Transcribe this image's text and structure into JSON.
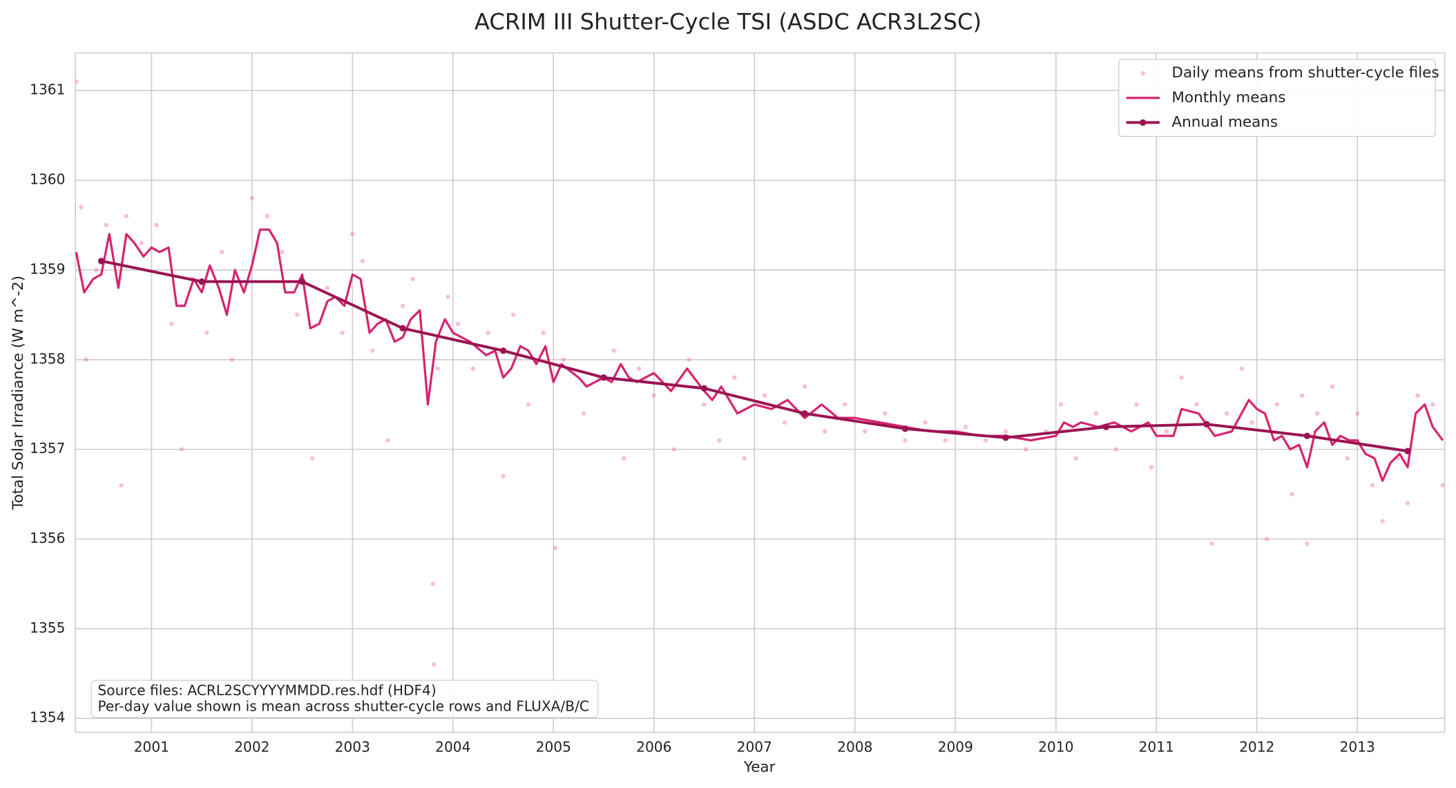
{
  "chart_data": {
    "type": "line",
    "title": "ACRIM III Shutter-Cycle TSI (ASDC ACR3L2SC)",
    "x_label": "Year",
    "y_label": "Total Solar Irradiance (W m^-2)",
    "xlim": [
      2000.243,
      2013.868
    ],
    "ylim": [
      1353.845,
      1361.42
    ],
    "xticks": [
      2001,
      2002,
      2003,
      2004,
      2005,
      2006,
      2007,
      2008,
      2009,
      2010,
      2011,
      2012,
      2013
    ],
    "yticks": [
      1354,
      1355,
      1356,
      1357,
      1358,
      1359,
      1360,
      1361
    ],
    "grid": true,
    "legend": "upper right",
    "annotation": [
      "Source files: ACRL2SCYYYYMMDD.res.hdf (HDF4)",
      "Per-day value shown is mean across shutter-cycle rows and FLUXA/B/C"
    ],
    "series": [
      {
        "name": "Daily means from shutter-cycle files",
        "type": "scatter",
        "color": "#f06eb0",
        "x": [
          2000.25,
          2000.3,
          2000.35,
          2000.45,
          2000.55,
          2000.7,
          2000.75,
          2000.9,
          2001.05,
          2001.2,
          2001.3,
          2001.4,
          2001.55,
          2001.7,
          2001.8,
          2002.0,
          2002.15,
          2002.3,
          2002.45,
          2002.6,
          2002.75,
          2002.9,
          2003.0,
          2003.1,
          2003.2,
          2003.35,
          2003.5,
          2003.6,
          2003.8,
          2003.81,
          2003.85,
          2003.95,
          2004.05,
          2004.2,
          2004.35,
          2004.5,
          2004.6,
          2004.75,
          2004.9,
          2005.02,
          2005.1,
          2005.3,
          2005.45,
          2005.6,
          2005.7,
          2005.85,
          2006.0,
          2006.2,
          2006.35,
          2006.5,
          2006.65,
          2006.8,
          2006.9,
          2007.1,
          2007.3,
          2007.5,
          2007.7,
          2007.9,
          2008.1,
          2008.3,
          2008.5,
          2008.7,
          2008.9,
          2009.1,
          2009.3,
          2009.5,
          2009.7,
          2009.9,
          2010.05,
          2010.2,
          2010.4,
          2010.6,
          2010.8,
          2010.95,
          2011.1,
          2011.25,
          2011.4,
          2011.55,
          2011.7,
          2011.85,
          2011.95,
          2012.1,
          2012.2,
          2012.35,
          2012.45,
          2012.5,
          2012.6,
          2012.75,
          2012.9,
          2013.0,
          2013.15,
          2013.25,
          2013.4,
          2013.5,
          2013.6,
          2013.75,
          2013.85
        ],
        "values": [
          1361.1,
          1359.7,
          1358.0,
          1359.0,
          1359.5,
          1356.6,
          1359.6,
          1359.3,
          1359.5,
          1358.4,
          1357.0,
          1358.9,
          1358.3,
          1359.2,
          1358.0,
          1359.8,
          1359.6,
          1359.2,
          1358.5,
          1356.9,
          1358.8,
          1358.3,
          1359.4,
          1359.1,
          1358.1,
          1357.1,
          1358.6,
          1358.9,
          1355.5,
          1354.6,
          1357.9,
          1358.7,
          1358.4,
          1357.9,
          1358.3,
          1356.7,
          1358.5,
          1357.5,
          1358.3,
          1355.9,
          1358.0,
          1357.4,
          1357.8,
          1358.1,
          1356.9,
          1357.9,
          1357.6,
          1357.0,
          1358.0,
          1357.5,
          1357.1,
          1357.8,
          1356.9,
          1357.6,
          1357.3,
          1357.7,
          1357.2,
          1357.5,
          1357.2,
          1357.4,
          1357.1,
          1357.3,
          1357.1,
          1357.25,
          1357.1,
          1357.2,
          1357.0,
          1357.2,
          1357.5,
          1356.9,
          1357.4,
          1357.0,
          1357.5,
          1356.8,
          1357.2,
          1357.8,
          1357.5,
          1355.95,
          1357.4,
          1357.9,
          1357.3,
          1356.0,
          1357.5,
          1356.5,
          1357.6,
          1355.95,
          1357.4,
          1357.7,
          1356.9,
          1357.4,
          1356.6,
          1356.2,
          1356.9,
          1356.4,
          1357.6,
          1357.5,
          1356.6
        ]
      },
      {
        "name": "Monthly means",
        "type": "line",
        "color": "#d6246e",
        "x": [
          2000.25,
          2000.33,
          2000.42,
          2000.5,
          2000.58,
          2000.67,
          2000.75,
          2000.83,
          2000.92,
          2001.0,
          2001.08,
          2001.17,
          2001.25,
          2001.33,
          2001.42,
          2001.5,
          2001.58,
          2001.67,
          2001.75,
          2001.83,
          2001.92,
          2002.0,
          2002.08,
          2002.17,
          2002.25,
          2002.33,
          2002.42,
          2002.5,
          2002.58,
          2002.67,
          2002.75,
          2002.83,
          2002.92,
          2003.0,
          2003.08,
          2003.17,
          2003.25,
          2003.33,
          2003.42,
          2003.5,
          2003.58,
          2003.67,
          2003.75,
          2003.83,
          2003.92,
          2004.0,
          2004.17,
          2004.33,
          2004.42,
          2004.5,
          2004.58,
          2004.67,
          2004.75,
          2004.83,
          2004.92,
          2005.0,
          2005.08,
          2005.25,
          2005.33,
          2005.5,
          2005.58,
          2005.67,
          2005.75,
          2005.83,
          2006.0,
          2006.17,
          2006.33,
          2006.5,
          2006.58,
          2006.67,
          2006.83,
          2007.0,
          2007.17,
          2007.33,
          2007.5,
          2007.67,
          2007.83,
          2008.0,
          2008.25,
          2008.5,
          2008.75,
          2009.0,
          2009.25,
          2009.5,
          2009.75,
          2010.0,
          2010.08,
          2010.17,
          2010.25,
          2010.42,
          2010.58,
          2010.75,
          2010.92,
          2011.0,
          2011.17,
          2011.25,
          2011.42,
          2011.58,
          2011.75,
          2011.92,
          2012.0,
          2012.08,
          2012.17,
          2012.25,
          2012.33,
          2012.42,
          2012.5,
          2012.58,
          2012.67,
          2012.75,
          2012.83,
          2012.92,
          2013.0,
          2013.08,
          2013.17,
          2013.25,
          2013.33,
          2013.42,
          2013.5,
          2013.58,
          2013.67,
          2013.75,
          2013.85
        ],
        "values": [
          1359.2,
          1358.75,
          1358.9,
          1358.95,
          1359.4,
          1358.8,
          1359.4,
          1359.3,
          1359.15,
          1359.25,
          1359.2,
          1359.25,
          1358.6,
          1358.6,
          1358.9,
          1358.75,
          1359.05,
          1358.8,
          1358.5,
          1359.0,
          1358.75,
          1359.05,
          1359.45,
          1359.45,
          1359.3,
          1358.75,
          1358.75,
          1358.95,
          1358.35,
          1358.4,
          1358.65,
          1358.7,
          1358.6,
          1358.95,
          1358.9,
          1358.3,
          1358.4,
          1358.45,
          1358.2,
          1358.25,
          1358.45,
          1358.55,
          1357.5,
          1358.2,
          1358.45,
          1358.3,
          1358.2,
          1358.05,
          1358.1,
          1357.8,
          1357.9,
          1358.15,
          1358.1,
          1357.95,
          1358.15,
          1357.75,
          1357.95,
          1357.8,
          1357.7,
          1357.8,
          1357.75,
          1357.95,
          1357.8,
          1357.75,
          1357.85,
          1357.65,
          1357.9,
          1357.65,
          1357.55,
          1357.7,
          1357.4,
          1357.5,
          1357.45,
          1357.55,
          1357.35,
          1357.5,
          1357.35,
          1357.35,
          1357.3,
          1357.25,
          1357.2,
          1357.2,
          1357.15,
          1357.15,
          1357.1,
          1357.15,
          1357.3,
          1357.25,
          1357.3,
          1357.25,
          1357.3,
          1357.2,
          1357.3,
          1357.15,
          1357.15,
          1357.45,
          1357.4,
          1357.15,
          1357.2,
          1357.55,
          1357.45,
          1357.4,
          1357.1,
          1357.15,
          1357.0,
          1357.05,
          1356.8,
          1357.2,
          1357.3,
          1357.05,
          1357.15,
          1357.1,
          1357.1,
          1356.95,
          1356.9,
          1356.65,
          1356.85,
          1356.95,
          1356.8,
          1357.4,
          1357.5,
          1357.25,
          1357.1
        ]
      },
      {
        "name": "Annual means",
        "type": "line-marker",
        "color": "#9b1452",
        "x": [
          2000.5,
          2001.5,
          2002.5,
          2003.5,
          2004.5,
          2005.5,
          2006.5,
          2007.5,
          2008.5,
          2009.5,
          2010.5,
          2011.5,
          2012.5,
          2013.5
        ],
        "values": [
          1359.1,
          1358.87,
          1358.87,
          1358.35,
          1358.1,
          1357.8,
          1357.68,
          1357.4,
          1357.23,
          1357.13,
          1357.25,
          1357.28,
          1357.15,
          1356.98
        ]
      }
    ]
  }
}
